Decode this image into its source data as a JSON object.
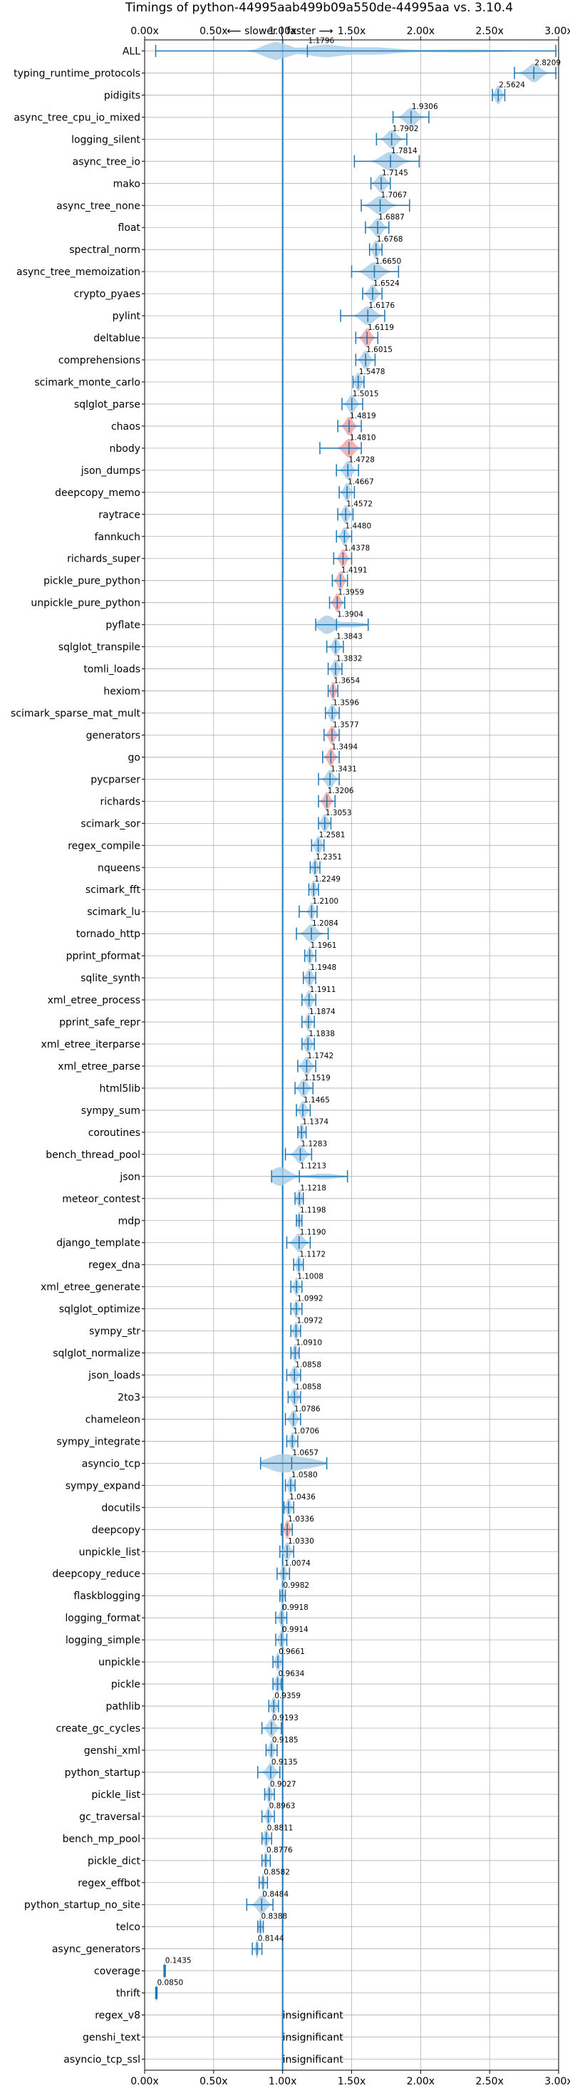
{
  "chart_data": {
    "type": "violin",
    "title": "Timings of python-44995aab499b09a550de-44995aa vs. 3.10.4",
    "direction_label": "⟵ slower | faster ⟶",
    "xlim": [
      0,
      3.0
    ],
    "xticks": [
      0,
      0.5,
      1.0,
      1.5,
      2.0,
      2.5,
      3.0
    ],
    "xtick_labels": [
      "0.00x",
      "0.50x",
      "1.00x",
      "1.50x",
      "2.00x",
      "2.50x",
      "3.00x"
    ],
    "reference_line": 1.0,
    "grid": true,
    "colors": {
      "body": "#a9cce6",
      "line": "#1f77b4",
      "highlight": "#f4a6a6"
    },
    "insignificant_text": "insignificant",
    "benchmarks": [
      {
        "name": "ALL",
        "value": 1.1796,
        "label": "1.1796",
        "lo": 0.08,
        "hi": 2.98,
        "bw": 0.08
      },
      {
        "name": "typing_runtime_protocols",
        "value": 2.8209,
        "label": "2.8209",
        "lo": 2.68,
        "hi": 2.98,
        "bw": 0.09
      },
      {
        "name": "pidigits",
        "value": 2.5624,
        "label": "2.5624",
        "lo": 2.52,
        "hi": 2.61,
        "bw": 0.04
      },
      {
        "name": "async_tree_cpu_io_mixed",
        "value": 1.9306,
        "label": "1.9306",
        "lo": 1.8,
        "hi": 2.06,
        "bw": 0.08
      },
      {
        "name": "logging_silent",
        "value": 1.7902,
        "label": "1.7902",
        "lo": 1.68,
        "hi": 1.9,
        "bw": 0.07
      },
      {
        "name": "async_tree_io",
        "value": 1.7814,
        "label": "1.7814",
        "lo": 1.52,
        "hi": 1.99,
        "bw": 0.12
      },
      {
        "name": "mako",
        "value": 1.7145,
        "label": "1.7145",
        "lo": 1.64,
        "hi": 1.78,
        "bw": 0.06
      },
      {
        "name": "async_tree_none",
        "value": 1.7067,
        "label": "1.7067",
        "lo": 1.57,
        "hi": 1.92,
        "bw": 0.1
      },
      {
        "name": "float",
        "value": 1.6887,
        "label": "1.6887",
        "lo": 1.6,
        "hi": 1.77,
        "bw": 0.06
      },
      {
        "name": "spectral_norm",
        "value": 1.6768,
        "label": "1.6768",
        "lo": 1.63,
        "hi": 1.72,
        "bw": 0.04
      },
      {
        "name": "async_tree_memoization",
        "value": 1.665,
        "label": "1.6650",
        "lo": 1.5,
        "hi": 1.84,
        "bw": 0.1
      },
      {
        "name": "crypto_pyaes",
        "value": 1.6524,
        "label": "1.6524",
        "lo": 1.58,
        "hi": 1.72,
        "bw": 0.05
      },
      {
        "name": "pylint",
        "value": 1.6176,
        "label": "1.6176",
        "lo": 1.42,
        "hi": 1.74,
        "bw": 0.09
      },
      {
        "name": "deltablue",
        "value": 1.6119,
        "label": "1.6119",
        "lo": 1.53,
        "hi": 1.69,
        "bw": 0.05,
        "highlight": true
      },
      {
        "name": "comprehensions",
        "value": 1.6015,
        "label": "1.6015",
        "lo": 1.53,
        "hi": 1.67,
        "bw": 0.05
      },
      {
        "name": "scimark_monte_carlo",
        "value": 1.5478,
        "label": "1.5478",
        "lo": 1.51,
        "hi": 1.59,
        "bw": 0.04
      },
      {
        "name": "sqlglot_parse",
        "value": 1.5015,
        "label": "1.5015",
        "lo": 1.43,
        "hi": 1.58,
        "bw": 0.05
      },
      {
        "name": "chaos",
        "value": 1.4819,
        "label": "1.4819",
        "lo": 1.4,
        "hi": 1.57,
        "bw": 0.05,
        "highlight": true
      },
      {
        "name": "nbody",
        "value": 1.481,
        "label": "1.4810",
        "lo": 1.27,
        "hi": 1.57,
        "bw": 0.07,
        "highlight": true
      },
      {
        "name": "json_dumps",
        "value": 1.4728,
        "label": "1.4728",
        "lo": 1.39,
        "hi": 1.55,
        "bw": 0.05
      },
      {
        "name": "deepcopy_memo",
        "value": 1.4667,
        "label": "1.4667",
        "lo": 1.41,
        "hi": 1.52,
        "bw": 0.04
      },
      {
        "name": "raytrace",
        "value": 1.4572,
        "label": "1.4572",
        "lo": 1.4,
        "hi": 1.51,
        "bw": 0.04
      },
      {
        "name": "fannkuch",
        "value": 1.448,
        "label": "1.4480",
        "lo": 1.39,
        "hi": 1.5,
        "bw": 0.04
      },
      {
        "name": "richards_super",
        "value": 1.4378,
        "label": "1.4378",
        "lo": 1.37,
        "hi": 1.5,
        "bw": 0.04,
        "highlight": true
      },
      {
        "name": "pickle_pure_python",
        "value": 1.4191,
        "label": "1.4191",
        "lo": 1.36,
        "hi": 1.47,
        "bw": 0.04,
        "highlight": true
      },
      {
        "name": "unpickle_pure_python",
        "value": 1.3959,
        "label": "1.3959",
        "lo": 1.34,
        "hi": 1.45,
        "bw": 0.04,
        "highlight": true
      },
      {
        "name": "pyflate",
        "value": 1.3904,
        "label": "1.3904",
        "lo": 1.24,
        "hi": 1.62,
        "bw": 0.08
      },
      {
        "name": "sqlglot_transpile",
        "value": 1.3843,
        "label": "1.3843",
        "lo": 1.32,
        "hi": 1.44,
        "bw": 0.04
      },
      {
        "name": "tomli_loads",
        "value": 1.3832,
        "label": "1.3832",
        "lo": 1.33,
        "hi": 1.43,
        "bw": 0.04
      },
      {
        "name": "hexiom",
        "value": 1.3654,
        "label": "1.3654",
        "lo": 1.33,
        "hi": 1.4,
        "bw": 0.03,
        "highlight": true
      },
      {
        "name": "scimark_sparse_mat_mult",
        "value": 1.3596,
        "label": "1.3596",
        "lo": 1.31,
        "hi": 1.41,
        "bw": 0.04
      },
      {
        "name": "generators",
        "value": 1.3577,
        "label": "1.3577",
        "lo": 1.3,
        "hi": 1.41,
        "bw": 0.04,
        "highlight": true
      },
      {
        "name": "go",
        "value": 1.3494,
        "label": "1.3494",
        "lo": 1.29,
        "hi": 1.41,
        "bw": 0.04,
        "highlight": true
      },
      {
        "name": "pycparser",
        "value": 1.3431,
        "label": "1.3431",
        "lo": 1.26,
        "hi": 1.41,
        "bw": 0.05
      },
      {
        "name": "richards",
        "value": 1.3206,
        "label": "1.3206",
        "lo": 1.26,
        "hi": 1.38,
        "bw": 0.04,
        "highlight": true
      },
      {
        "name": "scimark_sor",
        "value": 1.3053,
        "label": "1.3053",
        "lo": 1.26,
        "hi": 1.35,
        "bw": 0.04
      },
      {
        "name": "regex_compile",
        "value": 1.2581,
        "label": "1.2581",
        "lo": 1.21,
        "hi": 1.3,
        "bw": 0.04
      },
      {
        "name": "nqueens",
        "value": 1.2351,
        "label": "1.2351",
        "lo": 1.2,
        "hi": 1.27,
        "bw": 0.03
      },
      {
        "name": "scimark_fft",
        "value": 1.2249,
        "label": "1.2249",
        "lo": 1.19,
        "hi": 1.26,
        "bw": 0.03
      },
      {
        "name": "scimark_lu",
        "value": 1.21,
        "label": "1.2100",
        "lo": 1.12,
        "hi": 1.25,
        "bw": 0.03
      },
      {
        "name": "tornado_http",
        "value": 1.2084,
        "label": "1.2084",
        "lo": 1.1,
        "hi": 1.33,
        "bw": 0.07
      },
      {
        "name": "pprint_pformat",
        "value": 1.1961,
        "label": "1.1961",
        "lo": 1.16,
        "hi": 1.24,
        "bw": 0.03
      },
      {
        "name": "sqlite_synth",
        "value": 1.1948,
        "label": "1.1948",
        "lo": 1.15,
        "hi": 1.24,
        "bw": 0.04
      },
      {
        "name": "xml_etree_process",
        "value": 1.1911,
        "label": "1.1911",
        "lo": 1.14,
        "hi": 1.24,
        "bw": 0.04
      },
      {
        "name": "pprint_safe_repr",
        "value": 1.1874,
        "label": "1.1874",
        "lo": 1.14,
        "hi": 1.23,
        "bw": 0.03
      },
      {
        "name": "xml_etree_iterparse",
        "value": 1.1838,
        "label": "1.1838",
        "lo": 1.14,
        "hi": 1.23,
        "bw": 0.04
      },
      {
        "name": "xml_etree_parse",
        "value": 1.1742,
        "label": "1.1742",
        "lo": 1.11,
        "hi": 1.24,
        "bw": 0.05
      },
      {
        "name": "html5lib",
        "value": 1.1519,
        "label": "1.1519",
        "lo": 1.09,
        "hi": 1.22,
        "bw": 0.05
      },
      {
        "name": "sympy_sum",
        "value": 1.1465,
        "label": "1.1465",
        "lo": 1.1,
        "hi": 1.2,
        "bw": 0.04
      },
      {
        "name": "coroutines",
        "value": 1.1374,
        "label": "1.1374",
        "lo": 1.11,
        "hi": 1.17,
        "bw": 0.03
      },
      {
        "name": "bench_thread_pool",
        "value": 1.1283,
        "label": "1.1283",
        "lo": 1.02,
        "hi": 1.21,
        "bw": 0.06
      },
      {
        "name": "json",
        "value": 1.1213,
        "label": "1.1213",
        "lo": 0.92,
        "hi": 1.47,
        "bw": 0.1
      },
      {
        "name": "meteor_contest",
        "value": 1.1218,
        "label": "1.1218",
        "lo": 1.09,
        "hi": 1.15,
        "bw": 0.03
      },
      {
        "name": "mdp",
        "value": 1.1198,
        "label": "1.1198",
        "lo": 1.1,
        "hi": 1.14,
        "bw": 0.02
      },
      {
        "name": "django_template",
        "value": 1.119,
        "label": "1.1190",
        "lo": 1.03,
        "hi": 1.2,
        "bw": 0.06
      },
      {
        "name": "regex_dna",
        "value": 1.1172,
        "label": "1.1172",
        "lo": 1.08,
        "hi": 1.15,
        "bw": 0.03
      },
      {
        "name": "xml_etree_generate",
        "value": 1.1008,
        "label": "1.1008",
        "lo": 1.06,
        "hi": 1.14,
        "bw": 0.03
      },
      {
        "name": "sqlglot_optimize",
        "value": 1.0992,
        "label": "1.0992",
        "lo": 1.06,
        "hi": 1.14,
        "bw": 0.03
      },
      {
        "name": "sympy_str",
        "value": 1.0972,
        "label": "1.0972",
        "lo": 1.06,
        "hi": 1.13,
        "bw": 0.03
      },
      {
        "name": "sqlglot_normalize",
        "value": 1.091,
        "label": "1.0910",
        "lo": 1.06,
        "hi": 1.12,
        "bw": 0.03
      },
      {
        "name": "json_loads",
        "value": 1.0858,
        "label": "1.0858",
        "lo": 1.03,
        "hi": 1.13,
        "bw": 0.04
      },
      {
        "name": "2to3",
        "value": 1.0858,
        "label": "1.0858",
        "lo": 1.04,
        "hi": 1.13,
        "bw": 0.04
      },
      {
        "name": "chameleon",
        "value": 1.0786,
        "label": "1.0786",
        "lo": 1.02,
        "hi": 1.13,
        "bw": 0.04
      },
      {
        "name": "sympy_integrate",
        "value": 1.0706,
        "label": "1.0706",
        "lo": 1.03,
        "hi": 1.11,
        "bw": 0.03
      },
      {
        "name": "asyncio_tcp",
        "value": 1.0657,
        "label": "1.0657",
        "lo": 0.84,
        "hi": 1.32,
        "bw": 0.12
      },
      {
        "name": "sympy_expand",
        "value": 1.058,
        "label": "1.0580",
        "lo": 1.02,
        "hi": 1.09,
        "bw": 0.03
      },
      {
        "name": "docutils",
        "value": 1.0436,
        "label": "1.0436",
        "lo": 1.01,
        "hi": 1.08,
        "bw": 0.03
      },
      {
        "name": "deepcopy",
        "value": 1.0336,
        "label": "1.0336",
        "lo": 0.99,
        "hi": 1.07,
        "bw": 0.03,
        "highlight": true
      },
      {
        "name": "unpickle_list",
        "value": 1.033,
        "label": "1.0330",
        "lo": 0.98,
        "hi": 1.08,
        "bw": 0.04
      },
      {
        "name": "deepcopy_reduce",
        "value": 1.0074,
        "label": "1.0074",
        "lo": 0.96,
        "hi": 1.05,
        "bw": 0.03
      },
      {
        "name": "flaskblogging",
        "value": 0.9982,
        "label": "0.9982",
        "lo": 0.98,
        "hi": 1.02,
        "bw": 0.02
      },
      {
        "name": "logging_format",
        "value": 0.9918,
        "label": "0.9918",
        "lo": 0.95,
        "hi": 1.03,
        "bw": 0.03
      },
      {
        "name": "logging_simple",
        "value": 0.9914,
        "label": "0.9914",
        "lo": 0.95,
        "hi": 1.03,
        "bw": 0.03
      },
      {
        "name": "unpickle",
        "value": 0.9661,
        "label": "0.9661",
        "lo": 0.93,
        "hi": 1.0,
        "bw": 0.03
      },
      {
        "name": "pickle",
        "value": 0.9634,
        "label": "0.9634",
        "lo": 0.93,
        "hi": 0.99,
        "bw": 0.03
      },
      {
        "name": "pathlib",
        "value": 0.9359,
        "label": "0.9359",
        "lo": 0.9,
        "hi": 0.97,
        "bw": 0.03
      },
      {
        "name": "create_gc_cycles",
        "value": 0.9193,
        "label": "0.9193",
        "lo": 0.85,
        "hi": 0.99,
        "bw": 0.05
      },
      {
        "name": "genshi_xml",
        "value": 0.9185,
        "label": "0.9185",
        "lo": 0.88,
        "hi": 0.96,
        "bw": 0.03
      },
      {
        "name": "python_startup",
        "value": 0.9135,
        "label": "0.9135",
        "lo": 0.82,
        "hi": 0.98,
        "bw": 0.05
      },
      {
        "name": "pickle_list",
        "value": 0.9027,
        "label": "0.9027",
        "lo": 0.87,
        "hi": 0.94,
        "bw": 0.03
      },
      {
        "name": "gc_traversal",
        "value": 0.8963,
        "label": "0.8963",
        "lo": 0.85,
        "hi": 0.94,
        "bw": 0.03
      },
      {
        "name": "bench_mp_pool",
        "value": 0.8811,
        "label": "0.8811",
        "lo": 0.85,
        "hi": 0.92,
        "bw": 0.03
      },
      {
        "name": "pickle_dict",
        "value": 0.8776,
        "label": "0.8776",
        "lo": 0.85,
        "hi": 0.91,
        "bw": 0.02
      },
      {
        "name": "regex_effbot",
        "value": 0.8582,
        "label": "0.8582",
        "lo": 0.83,
        "hi": 0.89,
        "bw": 0.02
      },
      {
        "name": "python_startup_no_site",
        "value": 0.8484,
        "label": "0.8484",
        "lo": 0.74,
        "hi": 0.93,
        "bw": 0.06
      },
      {
        "name": "telco",
        "value": 0.8388,
        "label": "0.8388",
        "lo": 0.82,
        "hi": 0.86,
        "bw": 0.02
      },
      {
        "name": "async_generators",
        "value": 0.8144,
        "label": "0.8144",
        "lo": 0.78,
        "hi": 0.85,
        "bw": 0.02
      },
      {
        "name": "coverage",
        "value": 0.1435,
        "label": "0.1435",
        "lo": 0.14,
        "hi": 0.15,
        "bw": 0.01
      },
      {
        "name": "thrift",
        "value": 0.085,
        "label": "0.0850",
        "lo": 0.08,
        "hi": 0.09,
        "bw": 0.01
      },
      {
        "name": "regex_v8",
        "insignificant": true
      },
      {
        "name": "genshi_text",
        "insignificant": true
      },
      {
        "name": "asyncio_tcp_ssl",
        "insignificant": true
      }
    ]
  }
}
